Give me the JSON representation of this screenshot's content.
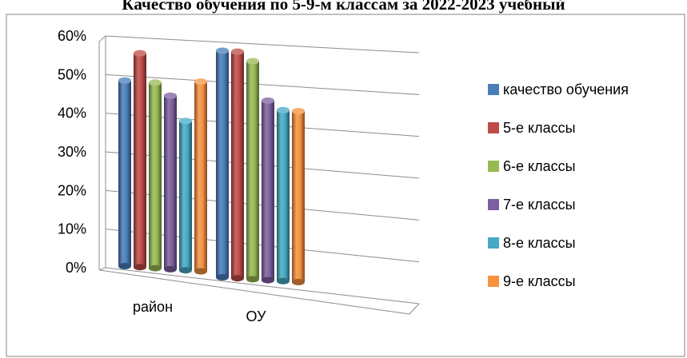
{
  "chart_data": {
    "type": "bar",
    "title": "Качество обучения по 5-9-м классам за 2022-2023 учебный",
    "categories": [
      "район",
      "ОУ"
    ],
    "y_ticks": [
      "0%",
      "10%",
      "20%",
      "30%",
      "40%",
      "50%",
      "60%"
    ],
    "ylim": [
      0,
      60
    ],
    "grid": true,
    "legend_position": "right",
    "series": [
      {
        "name": "качество обучения",
        "color": "#4a7ebb",
        "values": [
          46,
          53
        ]
      },
      {
        "name": "5-е классы",
        "color": "#be4b48",
        "values": [
          53,
          53
        ]
      },
      {
        "name": "6-е классы",
        "color": "#98b954",
        "values": [
          46,
          51
        ]
      },
      {
        "name": "7-е классы",
        "color": "#7d60a0",
        "values": [
          43,
          42
        ]
      },
      {
        "name": "8-е классы",
        "color": "#46aac5",
        "values": [
          37,
          40
        ]
      },
      {
        "name": "9-е классы",
        "color": "#f69240",
        "values": [
          47,
          40
        ]
      }
    ]
  }
}
